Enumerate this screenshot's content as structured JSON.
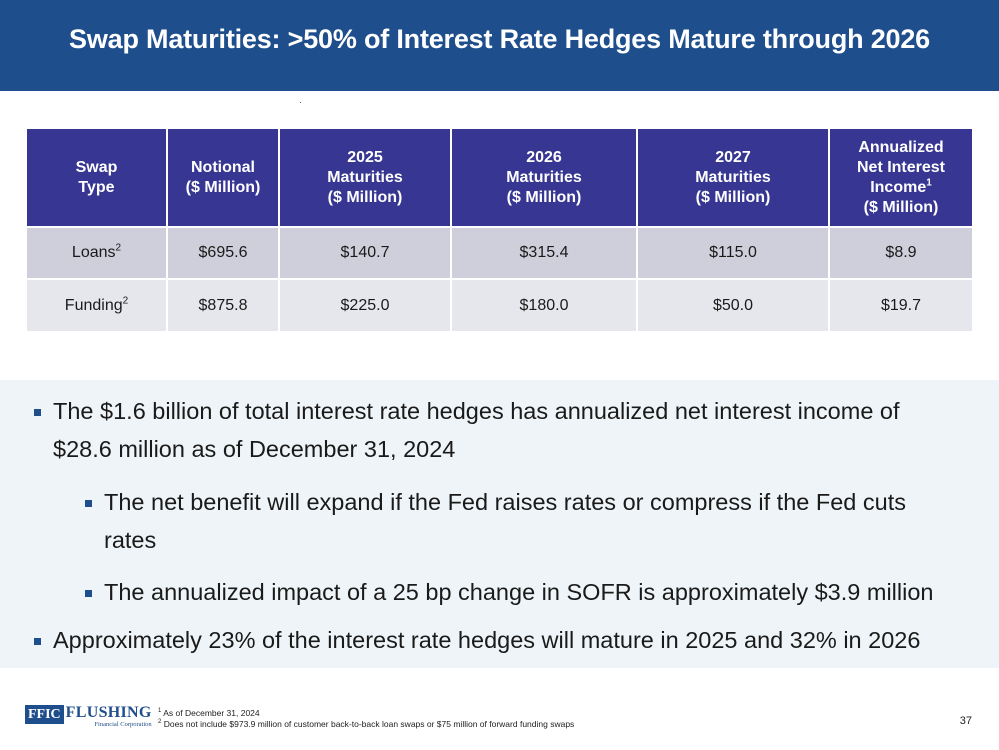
{
  "title": "Swap Maturities: >50% of Interest Rate Hedges Mature through 2026",
  "table": {
    "headers": [
      {
        "lines": [
          "Swap",
          "Type"
        ],
        "sup": ""
      },
      {
        "lines": [
          "Notional",
          "($ Million)"
        ],
        "sup": ""
      },
      {
        "lines": [
          "2025",
          "Maturities",
          "($ Million)"
        ],
        "sup": ""
      },
      {
        "lines": [
          "2026",
          "Maturities",
          "($ Million)"
        ],
        "sup": ""
      },
      {
        "lines": [
          "2027",
          "Maturities",
          "($ Million)"
        ],
        "sup": ""
      },
      {
        "lines": [
          "Annualized",
          "Net Interest",
          "Income",
          "($ Million)"
        ],
        "sup_line": 2,
        "sup": "1"
      }
    ],
    "rows": [
      {
        "type": "Loans",
        "sup": "2",
        "notional": "$695.6",
        "m2025": "$140.7",
        "m2026": "$315.4",
        "m2027": "$115.0",
        "nii": "$8.9"
      },
      {
        "type": "Funding",
        "sup": "2",
        "notional": "$875.8",
        "m2025": "$225.0",
        "m2026": "$180.0",
        "m2027": "$50.0",
        "nii": "$19.7"
      }
    ]
  },
  "bullets": [
    "The $1.6 billion of total interest rate hedges has annualized net interest income of $28.6 million as of December 31, 2024",
    "The net benefit will expand if the Fed raises rates or compress if the Fed cuts rates",
    "The annualized impact of a 25 bp change in SOFR is approximately $3.9 million",
    "Approximately 23% of the interest rate hedges will mature in 2025 and 32% in 2026"
  ],
  "logo": {
    "mark": "FFIC",
    "name": "FLUSHING",
    "sub": "Financial Corporation"
  },
  "footnotes": [
    {
      "num": "1",
      "text": "As of December 31, 2024"
    },
    {
      "num": "2",
      "text": "Does not include $973.9 million of customer back-to-back loan swaps or $75 million of forward funding swaps"
    }
  ],
  "page_number": "37",
  "colors": {
    "header_bg": "#1f4e8c",
    "table_header_bg": "#373793",
    "row_odd": "#cfcfdc",
    "row_even": "#e6e6ed",
    "bullet_panel": "#eef4f7"
  }
}
